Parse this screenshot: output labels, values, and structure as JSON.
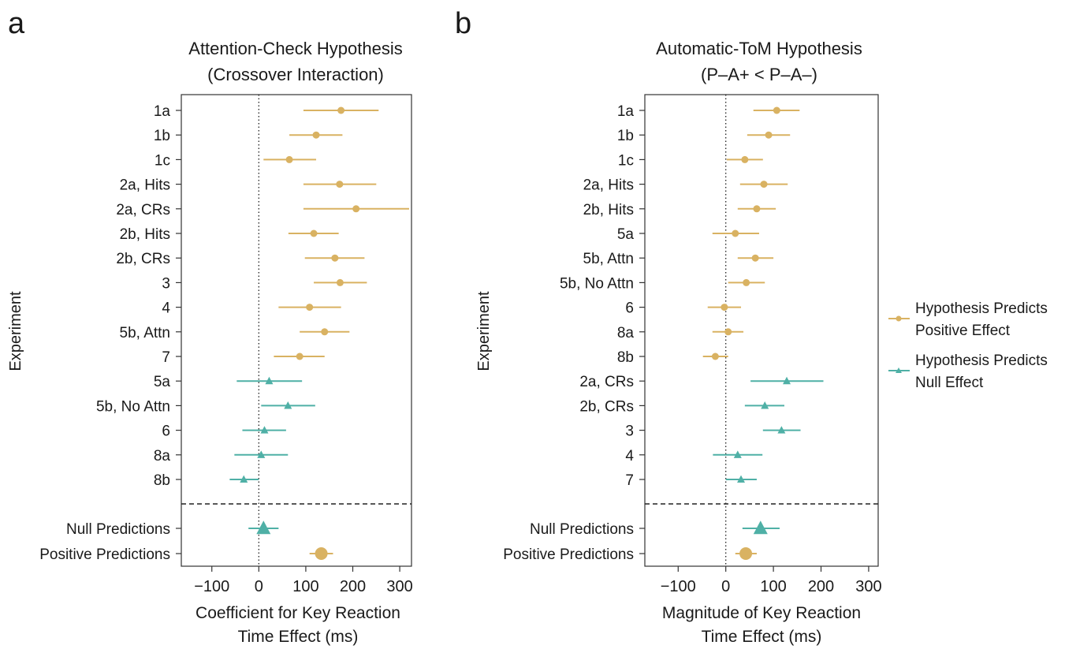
{
  "colors": {
    "positive": "#D9B262",
    "null": "#4FB0A6",
    "axis": "#333333"
  },
  "legend": {
    "positive_label_line1": "Hypothesis Predicts",
    "positive_label_line2": "Positive Effect",
    "null_label_line1": "Hypothesis Predicts",
    "null_label_line2": "Null Effect"
  },
  "chart_data": [
    {
      "type": "forest",
      "panel_letter": "a",
      "title_line1": "Attention-Check Hypothesis",
      "title_line2": "(Crossover Interaction)",
      "ylabel": "Experiment",
      "xlabel_line1": "Coefficient for Key Reaction",
      "xlabel_line2": "Time Effect (ms)",
      "xlim": [
        -165,
        325
      ],
      "xticks": [
        -100,
        0,
        100,
        200,
        300
      ],
      "xtick_labels": [
        "−100",
        "0",
        "100",
        "200",
        "300"
      ],
      "rows": [
        {
          "label": "1a",
          "est": 175,
          "lo": 95,
          "hi": 255,
          "group": "positive"
        },
        {
          "label": "1b",
          "est": 122,
          "lo": 65,
          "hi": 178,
          "group": "positive"
        },
        {
          "label": "1c",
          "est": 65,
          "lo": 10,
          "hi": 122,
          "group": "positive"
        },
        {
          "label": "2a, Hits",
          "est": 172,
          "lo": 95,
          "hi": 250,
          "group": "positive"
        },
        {
          "label": "2a, CRs",
          "est": 207,
          "lo": 95,
          "hi": 320,
          "group": "positive"
        },
        {
          "label": "2b, Hits",
          "est": 117,
          "lo": 63,
          "hi": 170,
          "group": "positive"
        },
        {
          "label": "2b, CRs",
          "est": 162,
          "lo": 98,
          "hi": 225,
          "group": "positive"
        },
        {
          "label": "3",
          "est": 173,
          "lo": 117,
          "hi": 230,
          "group": "positive"
        },
        {
          "label": "4",
          "est": 108,
          "lo": 42,
          "hi": 175,
          "group": "positive"
        },
        {
          "label": "5b, Attn",
          "est": 140,
          "lo": 87,
          "hi": 193,
          "group": "positive"
        },
        {
          "label": "7",
          "est": 87,
          "lo": 32,
          "hi": 140,
          "group": "positive"
        },
        {
          "label": "5a",
          "est": 22,
          "lo": -47,
          "hi": 92,
          "group": "null"
        },
        {
          "label": "5b, No Attn",
          "est": 62,
          "lo": 5,
          "hi": 120,
          "group": "null"
        },
        {
          "label": "6",
          "est": 12,
          "lo": -35,
          "hi": 58,
          "group": "null"
        },
        {
          "label": "8a",
          "est": 5,
          "lo": -52,
          "hi": 62,
          "group": "null"
        },
        {
          "label": "8b",
          "est": -32,
          "lo": -62,
          "hi": 0,
          "group": "null"
        }
      ],
      "summary": [
        {
          "label": "Null Predictions",
          "est": 10,
          "lo": -22,
          "hi": 42,
          "group": "null"
        },
        {
          "label": "Positive Predictions",
          "est": 133,
          "lo": 108,
          "hi": 158,
          "group": "positive"
        }
      ]
    },
    {
      "type": "forest",
      "panel_letter": "b",
      "title_line1": "Automatic-ToM Hypothesis",
      "title_line2": "(P–A+ < P–A–)",
      "ylabel": "Experiment",
      "xlabel_line1": "Magnitude of Key Reaction",
      "xlabel_line2": "Time Effect (ms)",
      "xlim": [
        -170,
        320
      ],
      "xticks": [
        -100,
        0,
        100,
        200,
        300
      ],
      "xtick_labels": [
        "−100",
        "0",
        "100",
        "200",
        "300"
      ],
      "rows": [
        {
          "label": "1a",
          "est": 107,
          "lo": 58,
          "hi": 155,
          "group": "positive"
        },
        {
          "label": "1b",
          "est": 90,
          "lo": 45,
          "hi": 135,
          "group": "positive"
        },
        {
          "label": "1c",
          "est": 40,
          "lo": 2,
          "hi": 78,
          "group": "positive"
        },
        {
          "label": "2a, Hits",
          "est": 80,
          "lo": 30,
          "hi": 130,
          "group": "positive"
        },
        {
          "label": "2b, Hits",
          "est": 65,
          "lo": 25,
          "hi": 105,
          "group": "positive"
        },
        {
          "label": "5a",
          "est": 20,
          "lo": -28,
          "hi": 70,
          "group": "positive"
        },
        {
          "label": "5b, Attn",
          "est": 62,
          "lo": 25,
          "hi": 100,
          "group": "positive"
        },
        {
          "label": "5b, No Attn",
          "est": 43,
          "lo": 5,
          "hi": 82,
          "group": "positive"
        },
        {
          "label": "6",
          "est": -3,
          "lo": -38,
          "hi": 32,
          "group": "positive"
        },
        {
          "label": "8a",
          "est": 5,
          "lo": -28,
          "hi": 37,
          "group": "positive"
        },
        {
          "label": "8b",
          "est": -22,
          "lo": -48,
          "hi": 5,
          "group": "positive"
        },
        {
          "label": "2a, CRs",
          "est": 128,
          "lo": 52,
          "hi": 205,
          "group": "null"
        },
        {
          "label": "2b, CRs",
          "est": 82,
          "lo": 40,
          "hi": 123,
          "group": "null"
        },
        {
          "label": "3",
          "est": 117,
          "lo": 78,
          "hi": 157,
          "group": "null"
        },
        {
          "label": "4",
          "est": 25,
          "lo": -27,
          "hi": 77,
          "group": "null"
        },
        {
          "label": "7",
          "est": 32,
          "lo": 0,
          "hi": 65,
          "group": "null"
        }
      ],
      "summary": [
        {
          "label": "Null Predictions",
          "est": 73,
          "lo": 35,
          "hi": 113,
          "group": "null"
        },
        {
          "label": "Positive Predictions",
          "est": 42,
          "lo": 20,
          "hi": 65,
          "group": "positive"
        }
      ]
    }
  ]
}
